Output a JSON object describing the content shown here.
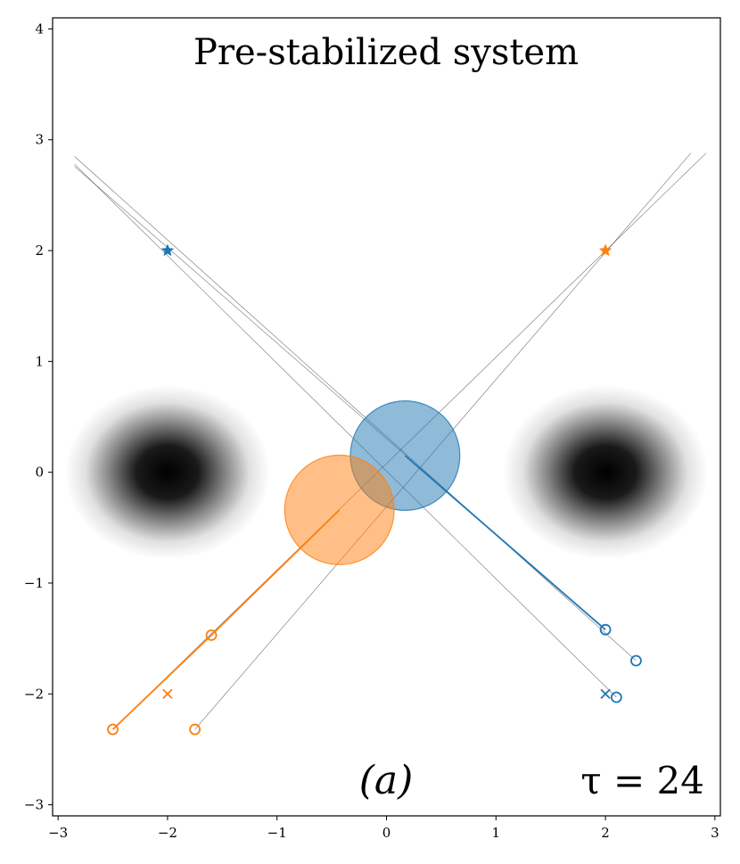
{
  "chart_data": {
    "type": "scatter",
    "title": "Pre-stabilized system",
    "panel_label": "(a)",
    "annotation": "τ = 24",
    "xlim": [
      -3.05,
      3.05
    ],
    "ylim": [
      -3.1,
      4.1
    ],
    "xticks": [
      -3,
      -2,
      -1,
      0,
      1,
      2,
      3
    ],
    "yticks": [
      -3,
      -2,
      -1,
      0,
      1,
      2,
      3,
      4
    ],
    "xtick_labels": [
      "−3",
      "−2",
      "−1",
      "0",
      "1",
      "2",
      "3"
    ],
    "ytick_labels": [
      "−3",
      "−2",
      "−1",
      "0",
      "1",
      "2",
      "3",
      "4"
    ],
    "grid": false,
    "legend": "none",
    "colors": {
      "blue": "#1f77b4",
      "orange": "#ff7f0e",
      "gray": "#000000"
    },
    "background_density": {
      "description_free": true,
      "blobs": [
        {
          "cx": -2.0,
          "cy": 0.0,
          "sx": 0.75,
          "sy": 0.42
        },
        {
          "cx": 2.0,
          "cy": 0.0,
          "sx": 0.75,
          "sy": 0.42
        }
      ]
    },
    "agents": [
      {
        "color": "blue",
        "goal": [
          -2.0,
          2.0
        ],
        "start": [
          2.0,
          -2.0
        ],
        "position": [
          0.17,
          0.15
        ],
        "radius": 0.5,
        "trajectory": [
          [
            2.0,
            -1.42
          ],
          [
            0.17,
            0.15
          ]
        ],
        "markers": [
          [
            2.0,
            -1.42
          ],
          [
            2.28,
            -1.7
          ],
          [
            2.1,
            -2.03
          ]
        ]
      },
      {
        "color": "orange",
        "goal": [
          2.0,
          2.0
        ],
        "start": [
          -2.0,
          -2.0
        ],
        "position": [
          -0.43,
          -0.34
        ],
        "radius": 0.5,
        "trajectory": [
          [
            -2.5,
            -2.32
          ],
          [
            -1.6,
            -1.47
          ],
          [
            -0.43,
            -0.34
          ]
        ],
        "markers": [
          [
            -2.5,
            -2.32
          ],
          [
            -1.6,
            -1.47
          ],
          [
            -1.75,
            -2.32
          ]
        ]
      }
    ],
    "reference_lines": [
      [
        [
          -2.85,
          2.85
        ],
        [
          2.28,
          -1.7
        ]
      ],
      [
        [
          -2.85,
          2.78
        ],
        [
          2.1,
          -2.03
        ]
      ],
      [
        [
          -2.85,
          2.76
        ],
        [
          2.0,
          -1.42
        ]
      ],
      [
        [
          -1.75,
          -2.32
        ],
        [
          2.78,
          2.88
        ]
      ],
      [
        [
          -2.5,
          -2.32
        ],
        [
          2.92,
          2.88
        ]
      ]
    ]
  }
}
